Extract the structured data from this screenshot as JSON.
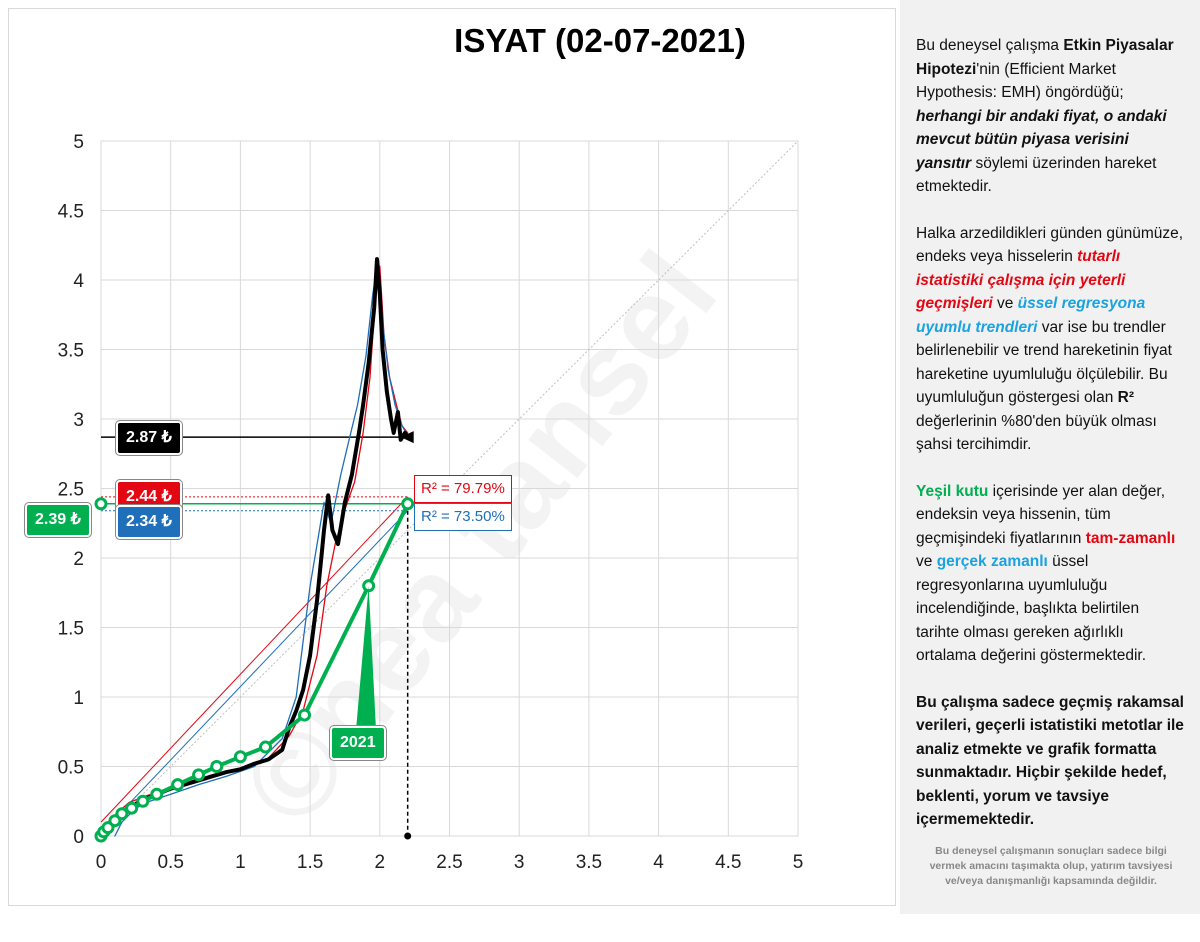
{
  "chart_data": {
    "type": "line",
    "title": "ISYAT (02-07-2021)",
    "xlim": [
      0,
      5
    ],
    "ylim": [
      0,
      5
    ],
    "xticks": [
      "0",
      "0.5",
      "1",
      "1.5",
      "2",
      "2.5",
      "3",
      "3.5",
      "4",
      "4.5",
      "5"
    ],
    "yticks": [
      "0",
      "0.5",
      "1",
      "1.5",
      "2",
      "2.5",
      "3",
      "3.5",
      "4",
      "4.5",
      "5"
    ],
    "grid": true,
    "series": [
      {
        "color": "#000000",
        "points": [
          [
            0,
            0.03
          ],
          [
            0.05,
            0.08
          ],
          [
            0.1,
            0.12
          ],
          [
            0.15,
            0.16
          ],
          [
            0.2,
            0.2
          ],
          [
            0.3,
            0.26
          ],
          [
            0.4,
            0.3
          ],
          [
            0.5,
            0.34
          ],
          [
            0.6,
            0.37
          ],
          [
            0.7,
            0.4
          ],
          [
            0.8,
            0.43
          ],
          [
            0.9,
            0.46
          ],
          [
            1.0,
            0.48
          ],
          [
            1.1,
            0.52
          ],
          [
            1.2,
            0.55
          ],
          [
            1.3,
            0.62
          ],
          [
            1.35,
            0.78
          ],
          [
            1.4,
            0.9
          ],
          [
            1.45,
            1.05
          ],
          [
            1.5,
            1.3
          ],
          [
            1.55,
            1.7
          ],
          [
            1.58,
            2.0
          ],
          [
            1.6,
            2.2
          ],
          [
            1.63,
            2.45
          ],
          [
            1.66,
            2.2
          ],
          [
            1.7,
            2.1
          ],
          [
            1.75,
            2.4
          ],
          [
            1.8,
            2.6
          ],
          [
            1.85,
            2.9
          ],
          [
            1.88,
            3.1
          ],
          [
            1.92,
            3.4
          ],
          [
            1.96,
            3.8
          ],
          [
            1.98,
            4.15
          ],
          [
            2.0,
            3.9
          ],
          [
            2.02,
            3.5
          ],
          [
            2.05,
            3.2
          ],
          [
            2.08,
            3.0
          ],
          [
            2.1,
            2.9
          ],
          [
            2.13,
            3.05
          ],
          [
            2.15,
            2.85
          ],
          [
            2.18,
            2.9
          ],
          [
            2.2,
            2.87
          ]
        ]
      },
      {
        "color": "#e30613",
        "points": [
          [
            0,
            0.05
          ],
          [
            0.1,
            0.15
          ],
          [
            0.2,
            0.24
          ],
          [
            0.3,
            0.28
          ],
          [
            0.5,
            0.35
          ],
          [
            0.8,
            0.44
          ],
          [
            1.0,
            0.49
          ],
          [
            1.2,
            0.56
          ],
          [
            1.35,
            0.72
          ],
          [
            1.45,
            0.9
          ],
          [
            1.55,
            1.3
          ],
          [
            1.62,
            1.8
          ],
          [
            1.68,
            2.1
          ],
          [
            1.75,
            2.35
          ],
          [
            1.82,
            2.55
          ],
          [
            1.88,
            2.9
          ],
          [
            1.93,
            3.3
          ],
          [
            1.97,
            3.9
          ],
          [
            2.0,
            4.1
          ],
          [
            2.03,
            3.6
          ],
          [
            2.07,
            3.3
          ],
          [
            2.12,
            3.1
          ],
          [
            2.16,
            2.95
          ],
          [
            2.2,
            2.9
          ]
        ]
      },
      {
        "color": "#1f6fba",
        "points": [
          [
            0.1,
            0.0
          ],
          [
            0.15,
            0.1
          ],
          [
            0.25,
            0.2
          ],
          [
            0.35,
            0.25
          ],
          [
            0.5,
            0.3
          ],
          [
            0.7,
            0.37
          ],
          [
            0.9,
            0.43
          ],
          [
            1.1,
            0.5
          ],
          [
            1.3,
            0.7
          ],
          [
            1.4,
            1.0
          ],
          [
            1.45,
            1.4
          ],
          [
            1.5,
            1.8
          ],
          [
            1.55,
            2.1
          ],
          [
            1.6,
            2.4
          ],
          [
            1.65,
            2.25
          ],
          [
            1.72,
            2.6
          ],
          [
            1.78,
            2.85
          ],
          [
            1.84,
            3.1
          ],
          [
            1.9,
            3.45
          ],
          [
            1.95,
            3.9
          ],
          [
            1.99,
            4.15
          ],
          [
            2.02,
            3.7
          ],
          [
            2.06,
            3.35
          ],
          [
            2.11,
            3.1
          ],
          [
            2.16,
            2.95
          ],
          [
            2.2,
            2.88
          ]
        ]
      },
      {
        "color": "#00b050",
        "points": [
          [
            0,
            0.0
          ],
          [
            0.02,
            0.03
          ],
          [
            0.05,
            0.06
          ],
          [
            0.1,
            0.11
          ],
          [
            0.15,
            0.16
          ],
          [
            0.22,
            0.2
          ],
          [
            0.3,
            0.25
          ],
          [
            0.4,
            0.3
          ],
          [
            0.55,
            0.37
          ],
          [
            0.7,
            0.44
          ],
          [
            0.83,
            0.5
          ],
          [
            1.0,
            0.57
          ],
          [
            1.18,
            0.64
          ],
          [
            1.46,
            0.87
          ],
          [
            1.92,
            1.8
          ],
          [
            2.2,
            2.39
          ]
        ],
        "markers": [
          [
            0,
            0.0
          ],
          [
            0.02,
            0.03
          ],
          [
            0.05,
            0.06
          ],
          [
            0.1,
            0.11
          ],
          [
            0.15,
            0.16
          ],
          [
            0.22,
            0.2
          ],
          [
            0.3,
            0.25
          ],
          [
            0.4,
            0.3
          ],
          [
            0.55,
            0.37
          ],
          [
            0.7,
            0.44
          ],
          [
            0.83,
            0.5
          ],
          [
            1.0,
            0.57
          ],
          [
            1.18,
            0.64
          ],
          [
            1.46,
            0.87
          ],
          [
            1.92,
            1.8
          ],
          [
            2.2,
            2.39
          ]
        ]
      }
    ],
    "trendlines": [
      {
        "color": "#e30613",
        "points": [
          [
            0,
            0.1
          ],
          [
            2.2,
            2.44
          ]
        ]
      },
      {
        "color": "#1f6fba",
        "points": [
          [
            0,
            0.02
          ],
          [
            2.2,
            2.34
          ]
        ]
      },
      {
        "color": "#bfbfbf",
        "points": [
          [
            0,
            0
          ],
          [
            5,
            5
          ]
        ]
      }
    ],
    "hlines": [
      {
        "color": "#000000",
        "y": 2.87,
        "x_end": 2.2,
        "style": "solid"
      },
      {
        "color": "#e30613",
        "y": 2.44,
        "x_end": 2.2,
        "style": "dotted"
      },
      {
        "color": "#1f6fba",
        "y": 2.34,
        "x_end": 2.2,
        "style": "dotted"
      },
      {
        "color": "#00b050",
        "y": 2.39,
        "x_end": 2.2,
        "style": "solid"
      }
    ],
    "vline": {
      "x": 2.2,
      "y_top": 2.39,
      "color": "#000000"
    },
    "labels": {
      "black": "2.87 ₺",
      "red": "2.44 ₺",
      "blue": "2.34 ₺",
      "green": "2.39 ₺",
      "r2_red": "R² = 79.79%",
      "r2_blue": "R² = 73.50%",
      "year": "2021"
    },
    "annotation_point": [
      1.92,
      1.8
    ]
  },
  "watermark": "©nea tansel",
  "colors": {
    "black": "#000000",
    "red": "#e30613",
    "blue": "#1f6fba",
    "green": "#00b050"
  },
  "panel": {
    "p1_a": "Bu deneysel çalışma ",
    "p1_b": "Etkin Piyasalar Hipotezi",
    "p1_c": "'nin (Efficient Market Hypothesis: EMH) öngördüğü; ",
    "p1_d": "herhangi bir andaki fiyat, o andaki mevcut bütün piyasa verisini yansıtır",
    "p1_e": "  söylemi üzerinden hareket etmektedir.",
    "p2_a": "Halka arzedildikleri günden günümüze, endeks veya hisselerin ",
    "p2_b": "tutarlı istatistiki çalışma için yeterli geçmişleri",
    "p2_c": " ve ",
    "p2_d": "üssel regresyona uyumlu trendleri",
    "p2_e": " var ise bu trendler belirlenebilir  ve trend hareketinin fiyat hareketine uyumluluğu ölçülebilir.  Bu uyumluluğun göstergesi olan ",
    "p2_f": "R²",
    "p2_g": " değerlerinin %80'den büyük olması şahsi tercihimdir.",
    "p3_a": "Yeşil kutu",
    "p3_b": " içerisinde yer alan değer, endeksin veya hissenin, tüm geçmişindeki fiyatlarının ",
    "p3_c": "tam-zamanlı",
    "p3_d": " ve ",
    "p3_e": "gerçek zamanlı",
    "p3_f": " üssel regresyonlarına uyumluluğu incelendiğinde, başlıkta belirtilen tarihte olması gereken ağırlıklı ortalama değerini göstermektedir.",
    "p4": "Bu çalışma sadece geçmiş rakamsal verileri, geçerli istatistiki metotlar ile  analiz etmekte ve grafik formatta sunmaktadır. Hiçbir şekilde hedef, beklenti, yorum ve tavsiye içermemektedir.",
    "disclaimer": "Bu deneysel çalışmanın sonuçları sadece bilgi vermek amacını taşımakta olup, yatırım tavsiyesi ve/veya danışmanlığı kapsamında değildir."
  }
}
